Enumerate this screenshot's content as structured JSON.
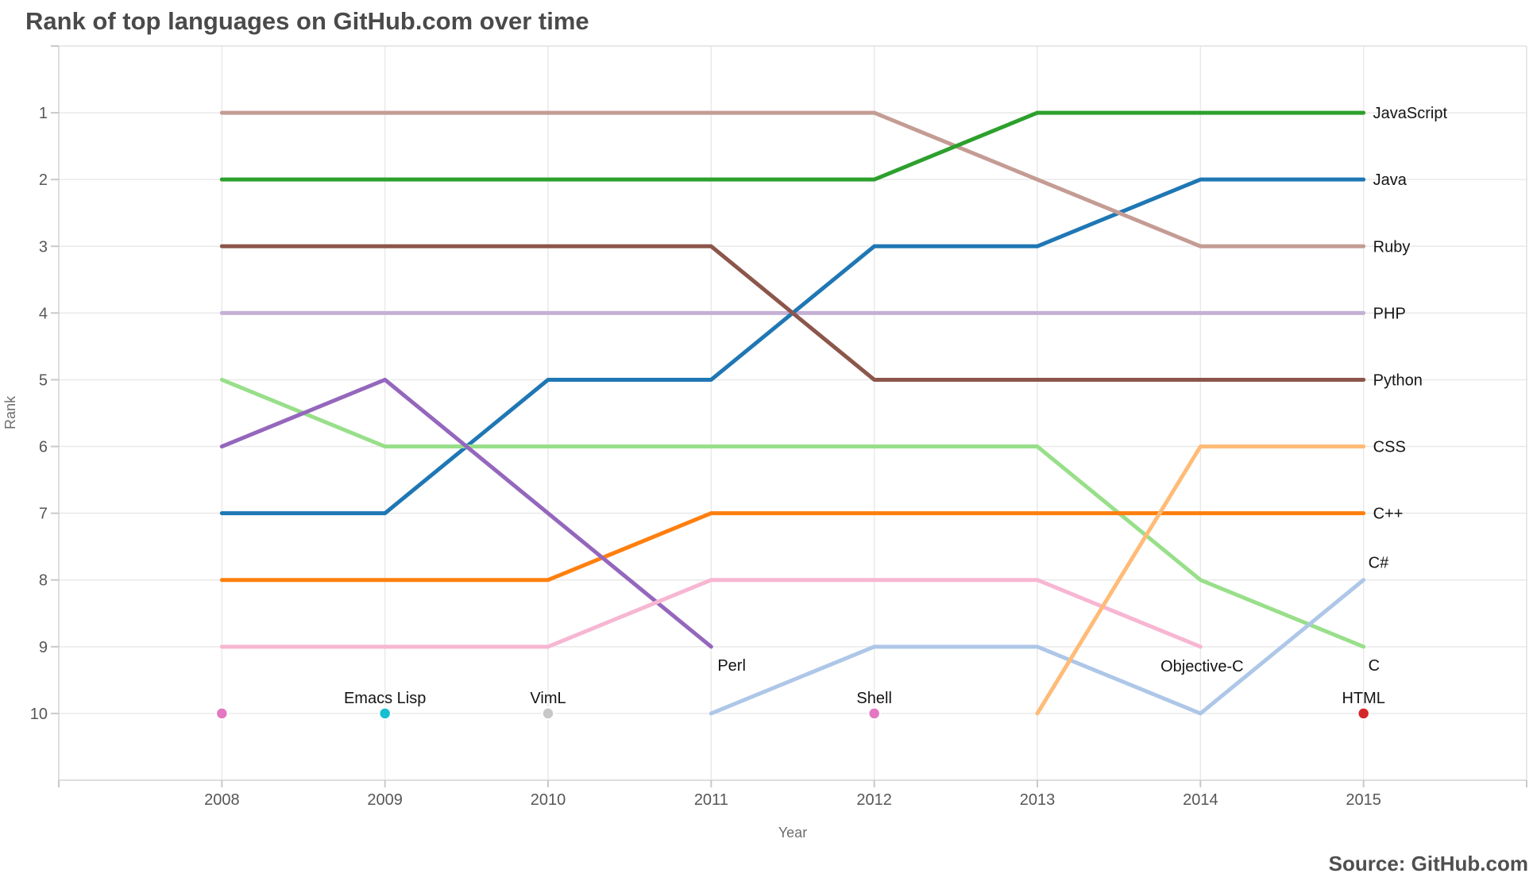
{
  "source_note": "Source: GitHub.com",
  "chart_data": {
    "type": "line",
    "variant": "rank-bump",
    "title": "Rank of top languages on GitHub.com over time",
    "xlabel": "Year",
    "ylabel": "Rank",
    "x_ticks": [
      2008,
      2009,
      2010,
      2011,
      2012,
      2013,
      2014,
      2015
    ],
    "y_ticks": [
      1,
      2,
      3,
      4,
      5,
      6,
      7,
      8,
      9,
      10
    ],
    "x_range": [
      2007,
      2016
    ],
    "y_range": [
      0,
      11
    ],
    "grid": true,
    "background": "#ffffff",
    "grid_color": "#e9e9e9",
    "legend_position": "line-end-labels",
    "series": [
      {
        "name": "PHP",
        "color": "#c5b0d5",
        "mode": "line",
        "x": [
          2008,
          2009,
          2010,
          2011,
          2012,
          2013,
          2014,
          2015
        ],
        "ranks": [
          4,
          4,
          4,
          4,
          4,
          4,
          4,
          4
        ],
        "label": {
          "anchor": "start",
          "dx": 12,
          "dy": 7
        }
      },
      {
        "name": "Java",
        "color": "#1f77b4",
        "mode": "line",
        "x": [
          2008,
          2009,
          2010,
          2011,
          2012,
          2013,
          2014,
          2015
        ],
        "ranks": [
          7,
          7,
          5,
          5,
          3,
          3,
          2,
          2
        ],
        "label": {
          "anchor": "start",
          "dx": 12,
          "dy": 7
        }
      },
      {
        "name": "Ruby",
        "color": "#c49c94",
        "mode": "line",
        "x": [
          2008,
          2009,
          2010,
          2011,
          2012,
          2013,
          2014,
          2015
        ],
        "ranks": [
          1,
          1,
          1,
          1,
          1,
          2,
          3,
          3
        ],
        "label": {
          "anchor": "start",
          "dx": 12,
          "dy": 7
        }
      },
      {
        "name": "JavaScript",
        "color": "#2ca02c",
        "mode": "line",
        "x": [
          2008,
          2009,
          2010,
          2011,
          2012,
          2013,
          2014,
          2015
        ],
        "ranks": [
          2,
          2,
          2,
          2,
          2,
          1,
          1,
          1
        ],
        "label": {
          "anchor": "start",
          "dx": 12,
          "dy": 7
        }
      },
      {
        "name": "Python",
        "color": "#8c564b",
        "mode": "line",
        "x": [
          2008,
          2009,
          2010,
          2011,
          2012,
          2013,
          2014,
          2015
        ],
        "ranks": [
          3,
          3,
          3,
          3,
          5,
          5,
          5,
          5
        ],
        "label": {
          "anchor": "start",
          "dx": 12,
          "dy": 7
        }
      },
      {
        "name": "C",
        "color": "#98df8a",
        "mode": "line",
        "x": [
          2008,
          2009,
          2010,
          2011,
          2012,
          2013,
          2014,
          2015
        ],
        "ranks": [
          5,
          6,
          6,
          6,
          6,
          6,
          8,
          9
        ],
        "label": {
          "anchor": "start",
          "dx": 6,
          "dy": 30
        }
      },
      {
        "name": "C++",
        "color": "#ff7f0e",
        "mode": "line",
        "x": [
          2008,
          2009,
          2010,
          2011,
          2012,
          2013,
          2014,
          2015
        ],
        "ranks": [
          8,
          8,
          8,
          7,
          7,
          7,
          7,
          7
        ],
        "label": {
          "anchor": "start",
          "dx": 12,
          "dy": 7
        }
      },
      {
        "name": "Perl",
        "color": "#9467bd",
        "mode": "line",
        "x": [
          2008,
          2009,
          2010,
          2011
        ],
        "ranks": [
          6,
          5,
          7,
          9
        ],
        "label": {
          "anchor": "start",
          "dx": 8,
          "dy": 30
        }
      },
      {
        "name": "Objective-C",
        "color": "#f7b6d2",
        "mode": "line",
        "x": [
          2008,
          2009,
          2010,
          2011,
          2012,
          2013,
          2014
        ],
        "ranks": [
          9,
          9,
          9,
          8,
          8,
          8,
          9
        ],
        "label": {
          "anchor": "middle",
          "dx": 2,
          "dy": 31
        }
      },
      {
        "name": "C#",
        "color": "#aec7e8",
        "mode": "line",
        "x": [
          2011,
          2012,
          2013,
          2014,
          2015
        ],
        "ranks": [
          10,
          9,
          9,
          10,
          8
        ],
        "label": {
          "anchor": "start",
          "dx": 6,
          "dy": -15
        }
      },
      {
        "name": "CSS",
        "color": "#ffbb78",
        "mode": "line",
        "x": [
          2013,
          2014,
          2015
        ],
        "ranks": [
          10,
          6,
          6
        ],
        "label": {
          "anchor": "start",
          "dx": 12,
          "dy": 7
        }
      },
      {
        "name": "Shell",
        "color": "#e377c2",
        "mode": "points",
        "x": [
          2008,
          2012
        ],
        "ranks": [
          10,
          10
        ],
        "label": {
          "anchor": "middle",
          "dx": 0,
          "dy": -13
        }
      },
      {
        "name": "Emacs Lisp",
        "color": "#17becf",
        "mode": "points",
        "x": [
          2009
        ],
        "ranks": [
          10
        ],
        "label": {
          "anchor": "middle",
          "dx": 0,
          "dy": -13
        }
      },
      {
        "name": "VimL",
        "color": "#c7c7c7",
        "mode": "points",
        "x": [
          2010
        ],
        "ranks": [
          10
        ],
        "label": {
          "anchor": "middle",
          "dx": 0,
          "dy": -13
        }
      },
      {
        "name": "HTML",
        "color": "#d62728",
        "mode": "points",
        "x": [
          2015
        ],
        "ranks": [
          10
        ],
        "label": {
          "anchor": "middle",
          "dx": 0,
          "dy": -13
        }
      }
    ]
  }
}
